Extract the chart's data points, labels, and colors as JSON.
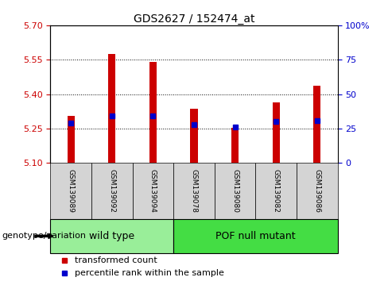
{
  "title": "GDS2627 / 152474_at",
  "samples": [
    "GSM139089",
    "GSM139092",
    "GSM139094",
    "GSM139078",
    "GSM139080",
    "GSM139082",
    "GSM139086"
  ],
  "groups": [
    "wild type",
    "wild type",
    "wild type",
    "POF null mutant",
    "POF null mutant",
    "POF null mutant",
    "POF null mutant"
  ],
  "group_colors": {
    "wild type": "#99ee99",
    "POF null mutant": "#44dd44"
  },
  "bar_bottom": 5.1,
  "transformed_counts": [
    5.305,
    5.575,
    5.54,
    5.335,
    5.255,
    5.365,
    5.435
  ],
  "percentile_ranks": [
    29,
    34,
    34,
    28,
    26,
    30,
    31
  ],
  "ylim_left": [
    5.1,
    5.7
  ],
  "ylim_right": [
    0,
    100
  ],
  "yticks_left": [
    5.1,
    5.25,
    5.4,
    5.55,
    5.7
  ],
  "yticks_right": [
    0,
    25,
    50,
    75,
    100
  ],
  "bar_color": "#cc0000",
  "percentile_color": "#0000cc",
  "bar_width": 0.18,
  "grid_yticks": [
    5.25,
    5.4,
    5.55
  ],
  "left_tick_color": "#cc0000",
  "right_tick_color": "#0000cc",
  "group_label": "genotype/variation",
  "legend_transformed": "transformed count",
  "legend_percentile": "percentile rank within the sample",
  "background_color": "#ffffff",
  "sample_box_color": "#d4d4d4",
  "title_fontsize": 10,
  "tick_fontsize": 8,
  "label_fontsize": 8
}
